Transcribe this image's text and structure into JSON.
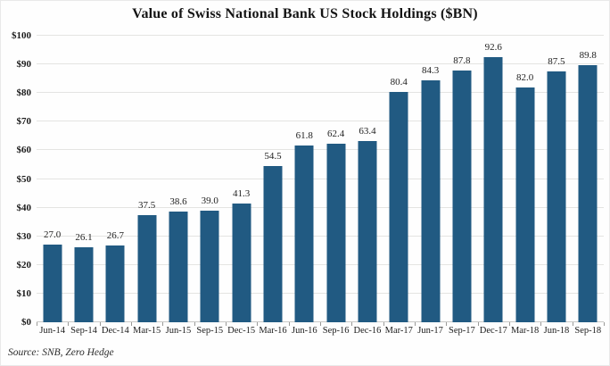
{
  "chart_data": {
    "type": "bar",
    "title": "Value of Swiss National Bank US Stock Holdings ($BN)",
    "categories": [
      "Jun-14",
      "Sep-14",
      "Dec-14",
      "Mar-15",
      "Jun-15",
      "Sep-15",
      "Dec-15",
      "Mar-16",
      "Jun-16",
      "Sep-16",
      "Dec-16",
      "Mar-17",
      "Jun-17",
      "Sep-17",
      "Dec-17",
      "Mar-18",
      "Jun-18",
      "Sep-18"
    ],
    "values": [
      27.0,
      26.1,
      26.7,
      37.5,
      38.6,
      39.0,
      41.3,
      54.5,
      61.8,
      62.4,
      63.4,
      80.4,
      84.3,
      87.8,
      92.6,
      82.0,
      87.5,
      89.8
    ],
    "value_labels": [
      "27.0",
      "26.1",
      "26.7",
      "37.5",
      "38.6",
      "39.0",
      "41.3",
      "54.5",
      "61.8",
      "62.4",
      "63.4",
      "80.4",
      "84.3",
      "87.8",
      "92.6",
      "82.0",
      "87.5",
      "89.8"
    ],
    "xlabel": "",
    "ylabel": "",
    "ylim": [
      0,
      100
    ],
    "ytick_step": 10,
    "ytick_labels": [
      "$0",
      "$10",
      "$20",
      "$30",
      "$40",
      "$50",
      "$60",
      "$70",
      "$80",
      "$90",
      "$100"
    ],
    "grid": true,
    "legend": "none",
    "bar_color": "#215a82",
    "gridline_color": "#e4e4e2"
  },
  "source_note": "Source: SNB, Zero Hedge"
}
